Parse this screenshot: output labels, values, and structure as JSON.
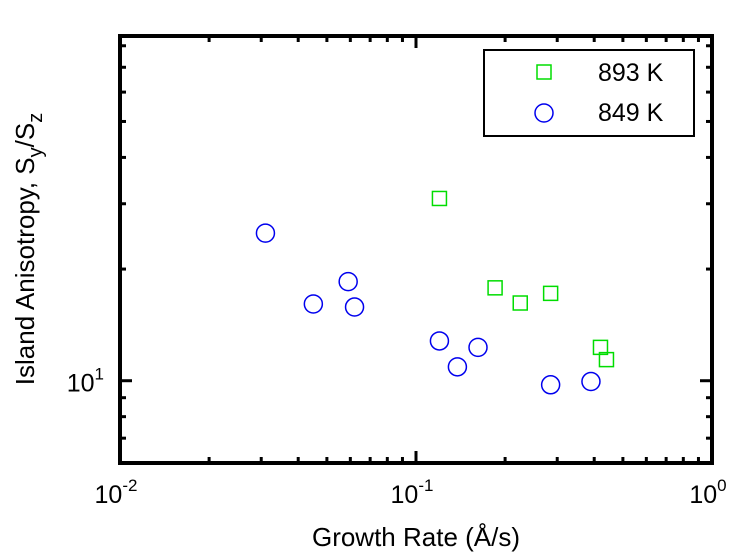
{
  "chart_data": {
    "type": "scatter",
    "title": "",
    "xlabel": "Growth Rate (Å/s)",
    "ylabel_main": "Island Anisotropy, S",
    "ylabel_sub1": "y",
    "ylabel_slash": "/S",
    "ylabel_sub2": "z",
    "xscale": "log",
    "yscale": "log",
    "xlim": [
      0.01,
      1
    ],
    "ylim": [
      6,
      85
    ],
    "x_ticks": [
      {
        "base": "10",
        "exp": "-2"
      },
      {
        "base": "10",
        "exp": "-1"
      },
      {
        "base": "10",
        "exp": "0"
      }
    ],
    "y_ticks": [
      {
        "base": "10",
        "exp": "1"
      }
    ],
    "legend_position": "top-right",
    "series": [
      {
        "name": "893 K",
        "marker": "square",
        "color": "#00dd00",
        "points": [
          {
            "x": 0.12,
            "y": 31.0
          },
          {
            "x": 0.185,
            "y": 17.8
          },
          {
            "x": 0.225,
            "y": 16.2
          },
          {
            "x": 0.285,
            "y": 17.2
          },
          {
            "x": 0.42,
            "y": 12.3
          },
          {
            "x": 0.44,
            "y": 11.4
          }
        ]
      },
      {
        "name": "849 K",
        "marker": "circle",
        "color": "#0000ee",
        "points": [
          {
            "x": 0.031,
            "y": 25.0
          },
          {
            "x": 0.045,
            "y": 16.1
          },
          {
            "x": 0.059,
            "y": 18.5
          },
          {
            "x": 0.062,
            "y": 15.8
          },
          {
            "x": 0.12,
            "y": 12.8
          },
          {
            "x": 0.138,
            "y": 10.9
          },
          {
            "x": 0.162,
            "y": 12.3
          },
          {
            "x": 0.285,
            "y": 9.75
          },
          {
            "x": 0.39,
            "y": 9.95
          }
        ]
      }
    ]
  }
}
